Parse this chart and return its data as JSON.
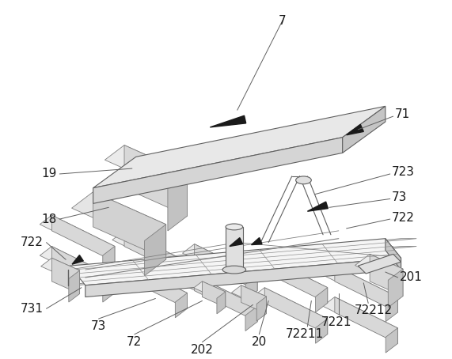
{
  "bg_color": "#ffffff",
  "lc": "#808080",
  "lc_dark": "#404040",
  "lc_thin": "#aaaaaa",
  "fill_white": "#ffffff",
  "fill_light": "#f0f0f0",
  "fill_mid": "#e0e0e0",
  "fill_dark": "#cccccc",
  "fill_darker": "#b8b8b8",
  "arrow_color": "#1a1a1a",
  "font_size": 11,
  "fig_width": 5.71,
  "fig_height": 4.54,
  "dpi": 100
}
